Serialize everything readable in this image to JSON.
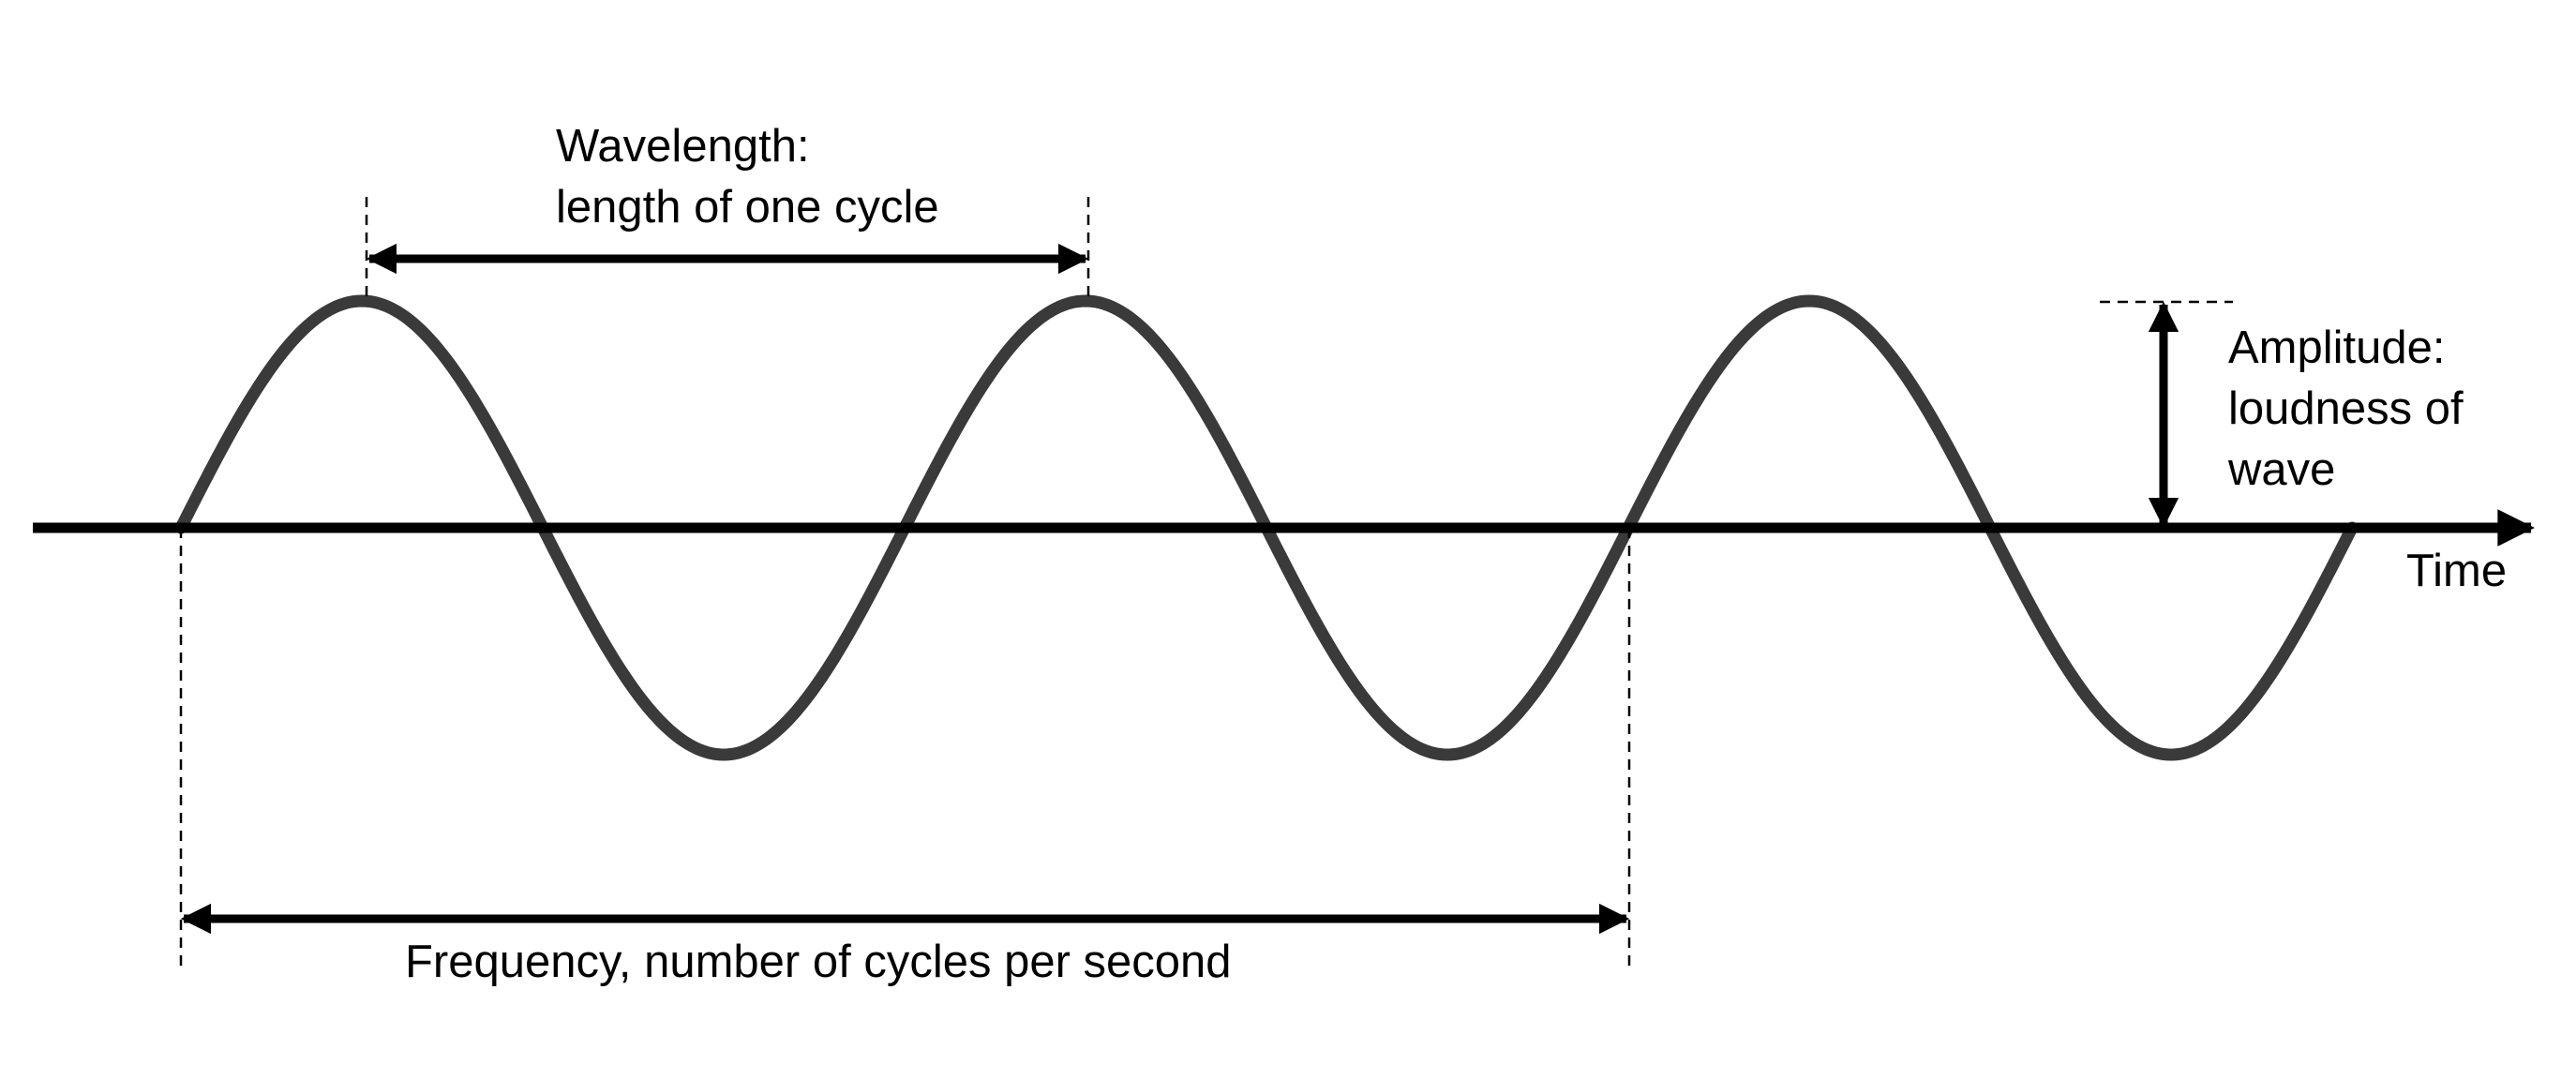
{
  "colors": {
    "wave": "#3a3a3a",
    "ink": "#000000",
    "background": "#ffffff"
  },
  "wave": {
    "cycles": 3,
    "shape": "sine"
  },
  "labels": {
    "wavelength_line1": "Wavelength:",
    "wavelength_line2": "length of one cycle",
    "amplitude_line1": "Amplitude:",
    "amplitude_line2": "loudness of",
    "amplitude_line3": "wave",
    "time": "Time",
    "frequency": "Frequency, number of cycles per second"
  }
}
